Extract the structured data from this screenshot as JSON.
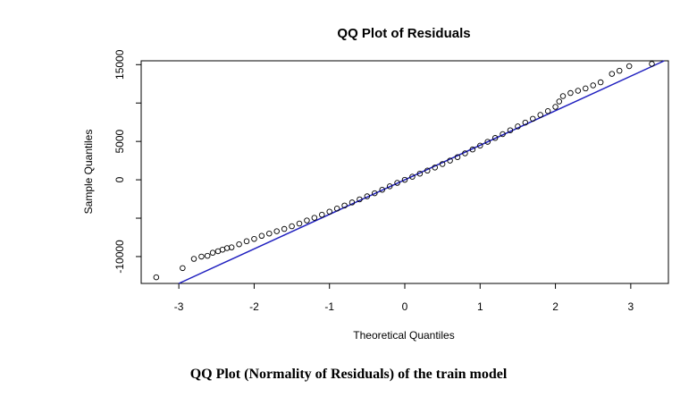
{
  "caption": "QQ Plot (Normality of Residuals) of the train model",
  "colors": {
    "line": "#1f1fbf",
    "points": "#000000",
    "frame": "#000000"
  },
  "chart_data": {
    "type": "scatter",
    "title": "QQ Plot of Residuals",
    "xlabel": "Theoretical Quantiles",
    "ylabel": "Sample Quantiles",
    "xlim": [
      -3.5,
      3.5
    ],
    "ylim": [
      -13500,
      15500
    ],
    "x_ticks": [
      -3,
      -2,
      -1,
      0,
      1,
      2,
      3
    ],
    "y_ticks": [
      -10000,
      -5000,
      0,
      5000,
      10000,
      15000
    ],
    "y_tick_labels": [
      "-10000",
      "",
      "0",
      "5000",
      "",
      "15000"
    ],
    "grid": false,
    "reference_line": {
      "intercept": 0,
      "slope": 4500
    },
    "series": [
      {
        "points": [
          [
            -3.3,
            -12700
          ],
          [
            -2.95,
            -11500
          ],
          [
            -2.8,
            -10300
          ],
          [
            -2.7,
            -10000
          ],
          [
            -2.62,
            -9900
          ],
          [
            -2.55,
            -9500
          ],
          [
            -2.48,
            -9300
          ],
          [
            -2.42,
            -9100
          ],
          [
            -2.36,
            -8900
          ],
          [
            -2.3,
            -8800
          ],
          [
            -2.2,
            -8400
          ],
          [
            -2.1,
            -8000
          ],
          [
            -2.0,
            -7700
          ],
          [
            -1.9,
            -7300
          ],
          [
            -1.8,
            -7000
          ],
          [
            -1.7,
            -6700
          ],
          [
            -1.6,
            -6400
          ],
          [
            -1.5,
            -6050
          ],
          [
            -1.4,
            -5700
          ],
          [
            -1.3,
            -5300
          ],
          [
            -1.2,
            -4950
          ],
          [
            -1.1,
            -4550
          ],
          [
            -1.0,
            -4150
          ],
          [
            -0.9,
            -3750
          ],
          [
            -0.8,
            -3350
          ],
          [
            -0.7,
            -2950
          ],
          [
            -0.6,
            -2550
          ],
          [
            -0.5,
            -2150
          ],
          [
            -0.4,
            -1750
          ],
          [
            -0.3,
            -1300
          ],
          [
            -0.2,
            -850
          ],
          [
            -0.1,
            -400
          ],
          [
            0.0,
            0
          ],
          [
            0.1,
            400
          ],
          [
            0.2,
            800
          ],
          [
            0.3,
            1200
          ],
          [
            0.4,
            1600
          ],
          [
            0.5,
            2050
          ],
          [
            0.6,
            2500
          ],
          [
            0.7,
            2950
          ],
          [
            0.8,
            3450
          ],
          [
            0.9,
            3950
          ],
          [
            1.0,
            4450
          ],
          [
            1.1,
            4950
          ],
          [
            1.2,
            5450
          ],
          [
            1.3,
            5950
          ],
          [
            1.4,
            6450
          ],
          [
            1.5,
            6950
          ],
          [
            1.6,
            7450
          ],
          [
            1.7,
            7950
          ],
          [
            1.8,
            8450
          ],
          [
            1.9,
            8950
          ],
          [
            2.0,
            9500
          ],
          [
            2.05,
            10200
          ],
          [
            2.1,
            10900
          ],
          [
            2.2,
            11300
          ],
          [
            2.3,
            11600
          ],
          [
            2.4,
            11900
          ],
          [
            2.5,
            12300
          ],
          [
            2.6,
            12700
          ],
          [
            2.75,
            13800
          ],
          [
            2.85,
            14200
          ],
          [
            2.98,
            14800
          ],
          [
            3.28,
            15100
          ]
        ]
      }
    ]
  }
}
